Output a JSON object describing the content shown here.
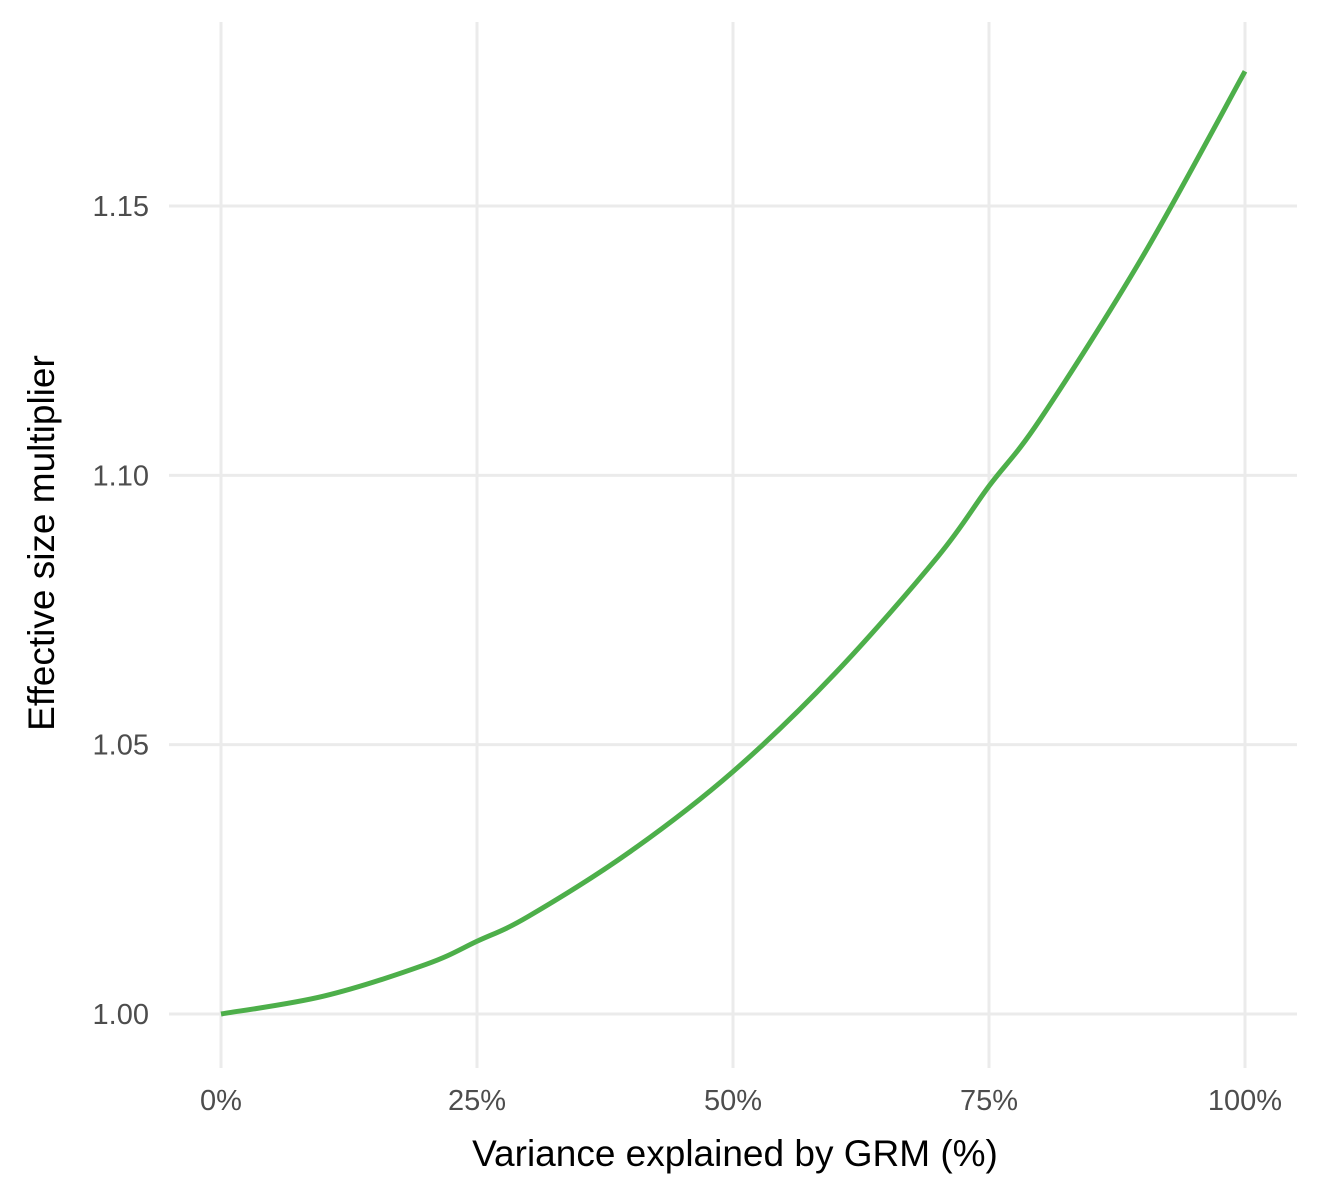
{
  "chart_data": {
    "type": "line",
    "title": "",
    "xlabel": "Variance explained by GRM (%)",
    "ylabel": "Effective size multiplier",
    "xlim": [
      0,
      100
    ],
    "ylim": [
      0.991,
      1.181
    ],
    "x_ticks": [
      0,
      25,
      50,
      75,
      100
    ],
    "x_tick_labels": [
      "0%",
      "25%",
      "50%",
      "75%",
      "100%"
    ],
    "y_ticks": [
      1.0,
      1.05,
      1.1,
      1.15
    ],
    "y_tick_labels": [
      "1.00",
      "1.05",
      "1.10",
      "1.15"
    ],
    "grid": true,
    "legend": "none",
    "colors": {
      "series": "#4daf4a",
      "grid": "#ebebeb",
      "tick_text": "#4d4d4d",
      "title_text": "#000000"
    },
    "series": [
      {
        "x": [
          0,
          10,
          20,
          25,
          30,
          40,
          50,
          60,
          70,
          75,
          80,
          90,
          100
        ],
        "values": [
          1.0,
          1.0033,
          1.0092,
          1.0135,
          1.0181,
          1.0302,
          1.045,
          1.0633,
          1.0849,
          1.098,
          1.1104,
          1.1406,
          1.175
        ]
      }
    ]
  }
}
